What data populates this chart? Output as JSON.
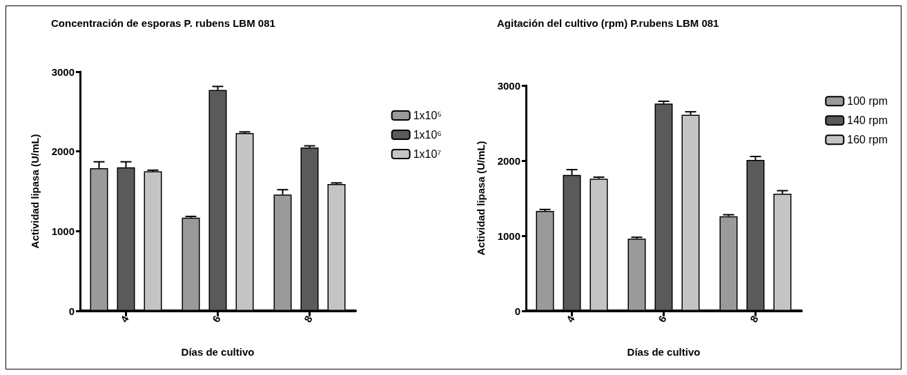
{
  "chart_data": [
    {
      "type": "bar",
      "title": "Concentración de esporas P. rubens LBM 081",
      "xlabel": "Días de cultivo",
      "ylabel": "Actividad lipasa (U/mL)",
      "categories": [
        "4",
        "6",
        "8"
      ],
      "ylim": [
        0,
        3000
      ],
      "yticks": [
        0,
        1000,
        2000,
        3000
      ],
      "legend": "right",
      "series": [
        {
          "name": "1x10⁵",
          "color": "#9a9a9a",
          "values": [
            1790,
            1170,
            1460
          ],
          "errors": [
            80,
            15,
            60
          ]
        },
        {
          "name": "1x10⁶",
          "color": "#5a5a5a",
          "values": [
            1800,
            2770,
            2050
          ],
          "errors": [
            70,
            45,
            20
          ]
        },
        {
          "name": "1x10⁷",
          "color": "#c4c4c4",
          "values": [
            1750,
            2230,
            1590
          ],
          "errors": [
            15,
            15,
            15
          ]
        }
      ]
    },
    {
      "type": "bar",
      "title": "Agitación del cultivo (rpm) P.rubens LBM 081",
      "xlabel": "Días de cultivo",
      "ylabel": "Actividad lipasa (U/mL)",
      "categories": [
        "4",
        "6",
        "8"
      ],
      "ylim": [
        0,
        3000
      ],
      "yticks": [
        0,
        1000,
        2000,
        3000
      ],
      "legend": "top right",
      "series": [
        {
          "name": "100 rpm",
          "color": "#9a9a9a",
          "values": [
            1330,
            960,
            1260
          ],
          "errors": [
            20,
            20,
            20
          ]
        },
        {
          "name": "140 rpm",
          "color": "#5a5a5a",
          "values": [
            1810,
            2760,
            2010
          ],
          "errors": [
            70,
            30,
            45
          ]
        },
        {
          "name": "160 rpm",
          "color": "#c4c4c4",
          "values": [
            1760,
            2610,
            1560
          ],
          "errors": [
            20,
            40,
            40
          ]
        }
      ]
    }
  ]
}
